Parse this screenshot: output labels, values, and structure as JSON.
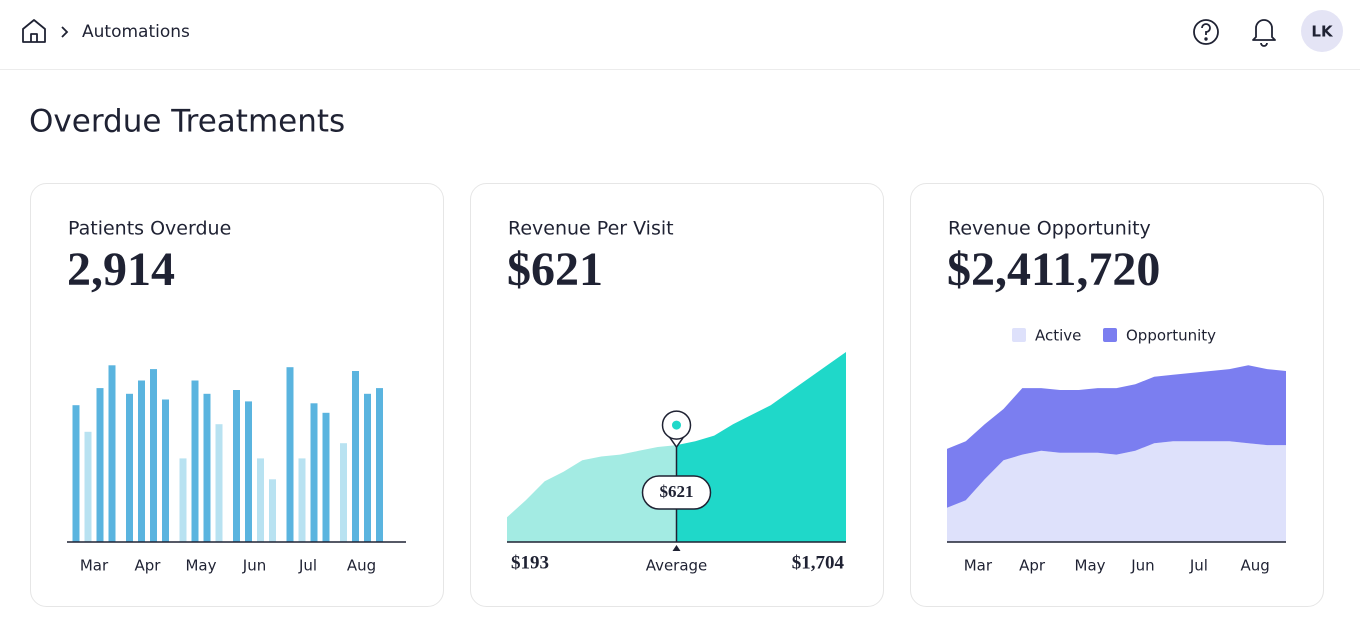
{
  "header": {
    "breadcrumb": "Automations",
    "avatar": "LK"
  },
  "page_title": "Overdue Treatments",
  "chart_data": [
    {
      "type": "bar",
      "title": "Patients Overdue",
      "headline": "2,914",
      "x_labels": [
        "Mar",
        "Apr",
        "May",
        "Jun",
        "Jul",
        "Aug"
      ],
      "values": [
        72,
        58,
        81,
        93,
        78,
        85,
        91,
        75,
        44,
        85,
        78,
        62,
        80,
        74,
        44,
        33,
        92,
        44,
        73,
        68,
        52,
        90,
        78,
        81
      ],
      "colors": [
        "#5ab4df",
        "#b8e2f1",
        "#5ab4df",
        "#5ab4df",
        "#5ab4df",
        "#5ab4df",
        "#5ab4df",
        "#5ab4df",
        "#b8e2f1",
        "#5ab4df",
        "#5ab4df",
        "#b8e2f1",
        "#5ab4df",
        "#5ab4df",
        "#b8e2f1",
        "#b8e2f1",
        "#5ab4df",
        "#b8e2f1",
        "#5ab4df",
        "#5ab4df",
        "#b8e2f1",
        "#5ab4df",
        "#5ab4df",
        "#5ab4df"
      ],
      "ylim": [
        0,
        100
      ]
    },
    {
      "type": "area",
      "title": "Revenue Per Visit",
      "headline": "$621",
      "x_labels": [
        "$193",
        "Average",
        "$1,704"
      ],
      "annotation": "$621",
      "series": [
        {
          "color": "#a3ebe3",
          "values": [
            13,
            22,
            32,
            37,
            43,
            45,
            46,
            48,
            50,
            51,
            null,
            null,
            null,
            null,
            null,
            null,
            null,
            null,
            null
          ]
        },
        {
          "color": "#1fd8c9",
          "values": [
            null,
            null,
            null,
            null,
            null,
            null,
            null,
            null,
            null,
            51,
            53,
            56,
            62,
            67,
            72,
            79,
            86,
            93,
            100
          ]
        }
      ],
      "ylim": [
        0,
        100
      ]
    },
    {
      "type": "stacked_area",
      "title": "Revenue Opportunity",
      "headline": "$2,411,720",
      "x_labels": [
        "Mar",
        "Apr",
        "May",
        "Jun",
        "Jul",
        "Aug"
      ],
      "series": [
        {
          "name": "Active",
          "color": "#dee1fb",
          "values": [
            18,
            22,
            33,
            43,
            46,
            48,
            47,
            47,
            47,
            46,
            48,
            52,
            53,
            53,
            53,
            53,
            52,
            51,
            51
          ]
        },
        {
          "name": "Opportunity",
          "color": "#7b7ef0",
          "values": [
            31,
            31,
            29,
            27,
            35,
            33,
            33,
            33,
            34,
            35,
            35,
            35,
            35,
            36,
            37,
            38,
            41,
            40,
            39
          ]
        }
      ],
      "ylim": [
        0,
        100
      ],
      "legend": "top"
    }
  ]
}
